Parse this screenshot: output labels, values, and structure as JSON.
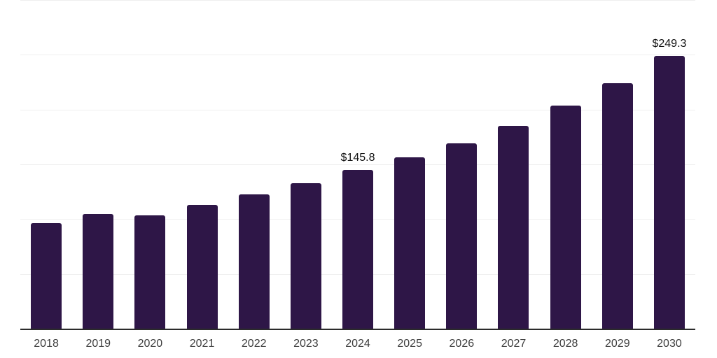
{
  "chart_data": {
    "type": "bar",
    "title": "",
    "xlabel": "",
    "ylabel": "",
    "categories": [
      "2018",
      "2019",
      "2020",
      "2021",
      "2022",
      "2023",
      "2024",
      "2025",
      "2026",
      "2027",
      "2028",
      "2029",
      "2030"
    ],
    "values": [
      96.8,
      105.1,
      103.8,
      113.4,
      122.9,
      133.1,
      145.8,
      157.3,
      170.1,
      186.0,
      204.4,
      224.8,
      249.3
    ],
    "data_labels": [
      "",
      "",
      "",
      "",
      "",
      "",
      "$145.8",
      "",
      "",
      "",
      "",
      "",
      "$249.3"
    ],
    "ylim": [
      0,
      300
    ],
    "gridline_values": [
      50,
      100,
      150,
      200,
      250,
      300
    ],
    "grid": true,
    "legend": false,
    "colors": {
      "bar": "#2e1647",
      "gridline": "#efefef",
      "axis_line": "#2b2b2b",
      "tick_label": "#3d3d3d",
      "data_label": "#111111",
      "background": "#ffffff"
    }
  }
}
